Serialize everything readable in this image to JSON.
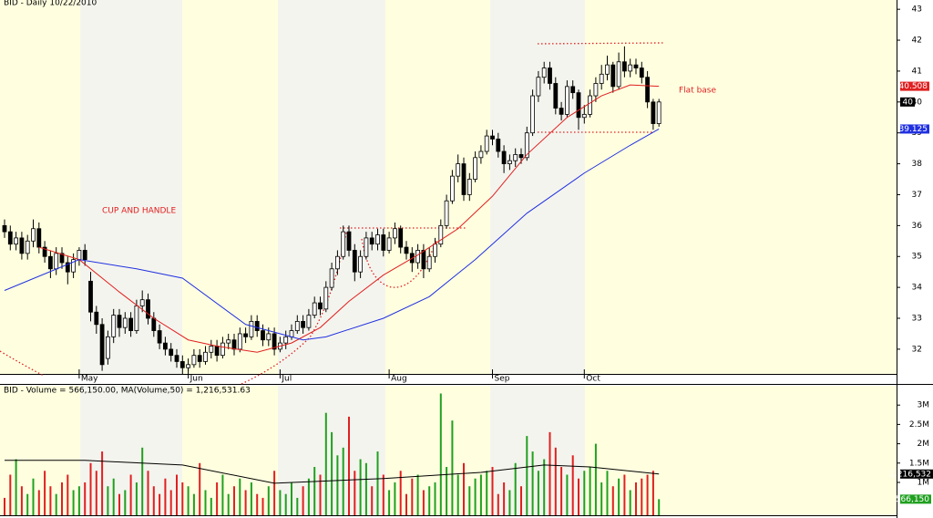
{
  "chart_data": [
    {
      "type": "candlestick",
      "title": "BID - Daily 10/22/2010",
      "annotations": [
        "CUP AND HANDLE",
        "Flat base"
      ],
      "ylim": [
        31.2,
        43.3
      ],
      "yticks": [
        32,
        33,
        34,
        35,
        36,
        37,
        38,
        39,
        40,
        41,
        42,
        43
      ],
      "xticks": [
        {
          "value": 13,
          "label": "May"
        },
        {
          "value": 32,
          "label": "Jun"
        },
        {
          "value": 48,
          "label": "Jul"
        },
        {
          "value": 67,
          "label": "Aug"
        },
        {
          "value": 85,
          "label": "Sep"
        },
        {
          "value": 101,
          "label": "Oct"
        }
      ],
      "candles": [
        [
          36.0,
          36.2,
          35.6,
          35.8
        ],
        [
          35.8,
          36.0,
          35.2,
          35.4
        ],
        [
          35.4,
          35.8,
          35.2,
          35.6
        ],
        [
          35.6,
          35.8,
          34.9,
          35.1
        ],
        [
          35.1,
          35.7,
          34.9,
          35.5
        ],
        [
          35.5,
          36.2,
          35.3,
          35.9
        ],
        [
          35.9,
          36.1,
          35.1,
          35.3
        ],
        [
          35.3,
          35.5,
          34.8,
          35.0
        ],
        [
          35.0,
          35.2,
          34.3,
          34.6
        ],
        [
          34.6,
          35.3,
          34.4,
          35.1
        ],
        [
          35.1,
          35.3,
          34.6,
          34.8
        ],
        [
          34.8,
          35.0,
          34.1,
          34.5
        ],
        [
          34.5,
          35.1,
          34.3,
          34.9
        ],
        [
          34.9,
          35.3,
          34.7,
          35.2
        ],
        [
          35.2,
          35.4,
          34.7,
          34.9
        ],
        [
          34.2,
          34.5,
          32.9,
          33.2
        ],
        [
          33.2,
          33.4,
          32.5,
          32.8
        ],
        [
          32.8,
          33.0,
          31.3,
          31.5
        ],
        [
          31.7,
          32.6,
          31.5,
          32.4
        ],
        [
          32.4,
          33.3,
          32.2,
          33.1
        ],
        [
          33.1,
          33.3,
          32.4,
          32.7
        ],
        [
          32.7,
          33.2,
          32.5,
          33.0
        ],
        [
          33.0,
          33.2,
          32.4,
          32.6
        ],
        [
          32.6,
          33.6,
          32.5,
          33.4
        ],
        [
          33.4,
          33.9,
          33.2,
          33.6
        ],
        [
          33.6,
          33.8,
          32.8,
          33.0
        ],
        [
          33.0,
          33.2,
          32.4,
          32.6
        ],
        [
          32.6,
          32.8,
          32.0,
          32.2
        ],
        [
          32.2,
          32.4,
          31.8,
          32.0
        ],
        [
          32.0,
          32.2,
          31.6,
          31.8
        ],
        [
          31.8,
          32.0,
          31.4,
          31.6
        ],
        [
          31.6,
          31.8,
          31.2,
          31.4
        ],
        [
          31.4,
          31.7,
          31.3,
          31.5
        ],
        [
          31.5,
          32.0,
          31.4,
          31.8
        ],
        [
          31.8,
          32.0,
          31.4,
          31.6
        ],
        [
          31.6,
          32.1,
          31.5,
          31.9
        ],
        [
          31.9,
          32.3,
          31.7,
          32.1
        ],
        [
          32.1,
          32.3,
          31.6,
          31.8
        ],
        [
          31.8,
          32.4,
          31.7,
          32.2
        ],
        [
          32.2,
          32.5,
          32.0,
          32.3
        ],
        [
          32.3,
          32.5,
          31.8,
          32.0
        ],
        [
          32.0,
          32.7,
          31.9,
          32.5
        ],
        [
          32.5,
          32.7,
          32.2,
          32.4
        ],
        [
          32.4,
          33.1,
          32.3,
          32.9
        ],
        [
          32.9,
          33.1,
          32.4,
          32.6
        ],
        [
          32.6,
          32.8,
          32.1,
          32.3
        ],
        [
          32.3,
          32.7,
          32.1,
          32.5
        ],
        [
          32.5,
          32.7,
          31.8,
          32.0
        ],
        [
          32.0,
          32.4,
          31.9,
          32.2
        ],
        [
          32.2,
          32.6,
          32.0,
          32.4
        ],
        [
          32.4,
          32.8,
          32.3,
          32.6
        ],
        [
          32.6,
          33.1,
          32.5,
          32.9
        ],
        [
          32.9,
          33.1,
          32.5,
          32.7
        ],
        [
          32.7,
          33.3,
          32.6,
          33.1
        ],
        [
          33.1,
          33.7,
          33.0,
          33.5
        ],
        [
          33.5,
          33.7,
          33.1,
          33.3
        ],
        [
          33.3,
          34.2,
          33.2,
          34.0
        ],
        [
          34.0,
          34.8,
          33.9,
          34.6
        ],
        [
          34.6,
          35.2,
          34.4,
          35.0
        ],
        [
          35.0,
          36.0,
          34.9,
          35.8
        ],
        [
          35.8,
          36.0,
          35.0,
          35.2
        ],
        [
          35.2,
          35.4,
          34.2,
          34.5
        ],
        [
          34.5,
          35.2,
          34.3,
          35.0
        ],
        [
          35.0,
          35.8,
          34.9,
          35.6
        ],
        [
          35.6,
          35.8,
          35.2,
          35.4
        ],
        [
          35.4,
          35.9,
          35.2,
          35.7
        ],
        [
          35.7,
          35.9,
          35.0,
          35.2
        ],
        [
          35.2,
          35.8,
          35.1,
          35.6
        ],
        [
          35.6,
          36.1,
          35.4,
          35.9
        ],
        [
          35.9,
          36.0,
          35.1,
          35.3
        ],
        [
          35.3,
          35.5,
          34.9,
          35.1
        ],
        [
          35.1,
          35.3,
          34.5,
          34.8
        ],
        [
          34.8,
          35.4,
          34.6,
          35.2
        ],
        [
          35.2,
          35.4,
          34.3,
          34.6
        ],
        [
          34.6,
          35.3,
          34.5,
          35.0
        ],
        [
          35.0,
          35.6,
          34.8,
          35.4
        ],
        [
          35.4,
          36.2,
          35.3,
          36.0
        ],
        [
          36.0,
          37.0,
          35.9,
          36.8
        ],
        [
          36.8,
          37.8,
          36.7,
          37.6
        ],
        [
          37.6,
          38.3,
          37.4,
          38.0
        ],
        [
          38.0,
          38.2,
          36.8,
          37.0
        ],
        [
          37.0,
          37.7,
          36.8,
          37.5
        ],
        [
          37.5,
          38.4,
          37.4,
          38.2
        ],
        [
          38.2,
          38.6,
          38.0,
          38.4
        ],
        [
          38.4,
          39.1,
          38.3,
          38.9
        ],
        [
          38.9,
          39.1,
          38.6,
          38.8
        ],
        [
          38.8,
          39.0,
          38.2,
          38.4
        ],
        [
          38.4,
          38.6,
          37.7,
          38.0
        ],
        [
          38.0,
          38.3,
          37.8,
          38.1
        ],
        [
          38.1,
          38.5,
          37.9,
          38.3
        ],
        [
          38.3,
          38.5,
          38.0,
          38.2
        ],
        [
          38.2,
          39.2,
          38.1,
          39.0
        ],
        [
          39.0,
          40.4,
          38.9,
          40.2
        ],
        [
          40.2,
          41.0,
          40.0,
          40.8
        ],
        [
          40.8,
          41.3,
          40.6,
          41.1
        ],
        [
          41.1,
          41.3,
          40.4,
          40.6
        ],
        [
          40.6,
          40.8,
          39.6,
          39.8
        ],
        [
          39.8,
          40.0,
          39.4,
          39.6
        ],
        [
          39.6,
          40.7,
          39.5,
          40.5
        ],
        [
          40.5,
          40.7,
          40.1,
          40.3
        ],
        [
          40.3,
          40.4,
          39.1,
          39.5
        ],
        [
          39.5,
          39.9,
          39.3,
          39.6
        ],
        [
          39.6,
          40.4,
          39.5,
          40.2
        ],
        [
          40.2,
          40.8,
          40.0,
          40.6
        ],
        [
          40.6,
          41.2,
          40.4,
          40.9
        ],
        [
          40.9,
          41.5,
          40.7,
          41.2
        ],
        [
          41.2,
          41.3,
          40.3,
          40.5
        ],
        [
          40.5,
          41.6,
          40.4,
          41.3
        ],
        [
          41.3,
          41.8,
          40.8,
          41.0
        ],
        [
          41.0,
          41.4,
          40.8,
          41.2
        ],
        [
          41.2,
          41.4,
          40.9,
          41.1
        ],
        [
          41.1,
          41.3,
          40.6,
          40.8
        ],
        [
          40.8,
          41.0,
          39.8,
          40.0
        ],
        [
          40.0,
          40.1,
          39.1,
          39.3
        ],
        [
          39.3,
          40.1,
          39.2,
          40.0
        ]
      ],
      "series": [
        {
          "color": "#e02020",
          "x": [
            6,
            13,
            20,
            26,
            32,
            37,
            44,
            50,
            55,
            60,
            66,
            72,
            79,
            85,
            91,
            98,
            104,
            109,
            114
          ],
          "values": [
            35.3,
            34.9,
            33.85,
            33.0,
            32.3,
            32.1,
            31.9,
            32.2,
            32.7,
            33.55,
            34.4,
            35.05,
            35.9,
            36.95,
            38.3,
            39.5,
            40.2,
            40.55,
            40.508
          ]
        },
        {
          "color": "#2030e0",
          "x": [
            0,
            13,
            23,
            31,
            42,
            52,
            56,
            66,
            74,
            82,
            91,
            101,
            109,
            114
          ],
          "values": [
            33.9,
            34.9,
            34.6,
            34.3,
            32.8,
            32.3,
            32.4,
            33.0,
            33.7,
            34.9,
            36.4,
            37.7,
            38.6,
            39.125
          ]
        }
      ]
    },
    {
      "type": "bar",
      "title": "BID - Volume = 566,150.00, MA(Volume,50) = 1,216,531.63",
      "up_color": "#20a020",
      "down_color": "#e02020",
      "ylim": [
        150000,
        3500000
      ],
      "yticks": [
        {
          "value": 1000000,
          "label": "1M"
        },
        {
          "value": 1500000,
          "label": "1.5M"
        },
        {
          "value": 2000000,
          "label": "2M"
        },
        {
          "value": 2500000,
          "label": "2.5M"
        },
        {
          "value": 3000000,
          "label": "3M"
        }
      ],
      "values": [
        600000,
        1200000,
        1600000,
        900000,
        700000,
        1100000,
        800000,
        1300000,
        900000,
        700000,
        1000000,
        1200000,
        800000,
        900000,
        1000000,
        1500000,
        1300000,
        1800000,
        900000,
        1100000,
        700000,
        800000,
        1200000,
        1000000,
        1900000,
        1300000,
        900000,
        700000,
        1100000,
        800000,
        1200000,
        1000000,
        900000,
        700000,
        1500000,
        800000,
        600000,
        1000000,
        1200000,
        700000,
        900000,
        1100000,
        800000,
        1000000,
        700000,
        600000,
        900000,
        1300000,
        800000,
        700000,
        1000000,
        600000,
        900000,
        1100000,
        1400000,
        1200000,
        2800000,
        2300000,
        1700000,
        1900000,
        2700000,
        1300000,
        1600000,
        1500000,
        900000,
        1800000,
        1200000,
        800000,
        1000000,
        1300000,
        700000,
        1100000,
        1200000,
        800000,
        900000,
        1000000,
        3300000,
        1400000,
        2600000,
        1200000,
        1500000,
        900000,
        1100000,
        1200000,
        1300000,
        1400000,
        700000,
        1000000,
        800000,
        1500000,
        900000,
        2200000,
        1800000,
        1300000,
        1600000,
        2300000,
        1900000,
        1400000,
        1200000,
        1700000,
        1100000,
        1300000,
        1400000,
        2000000,
        1000000,
        1300000,
        900000,
        1100000,
        1200000,
        800000,
        1000000,
        1100000,
        1200000,
        1300000,
        566150
      ],
      "last_label": "566,150",
      "series": [
        {
          "color": "#000000",
          "x": [
            0,
            14,
            31,
            47,
            66,
            83,
            94,
            102,
            114
          ],
          "values": [
            1570000,
            1570000,
            1450000,
            980000,
            1100000,
            1260000,
            1450000,
            1400000,
            1216531.63
          ],
          "last_label": "1,216,532"
        }
      ]
    }
  ]
}
